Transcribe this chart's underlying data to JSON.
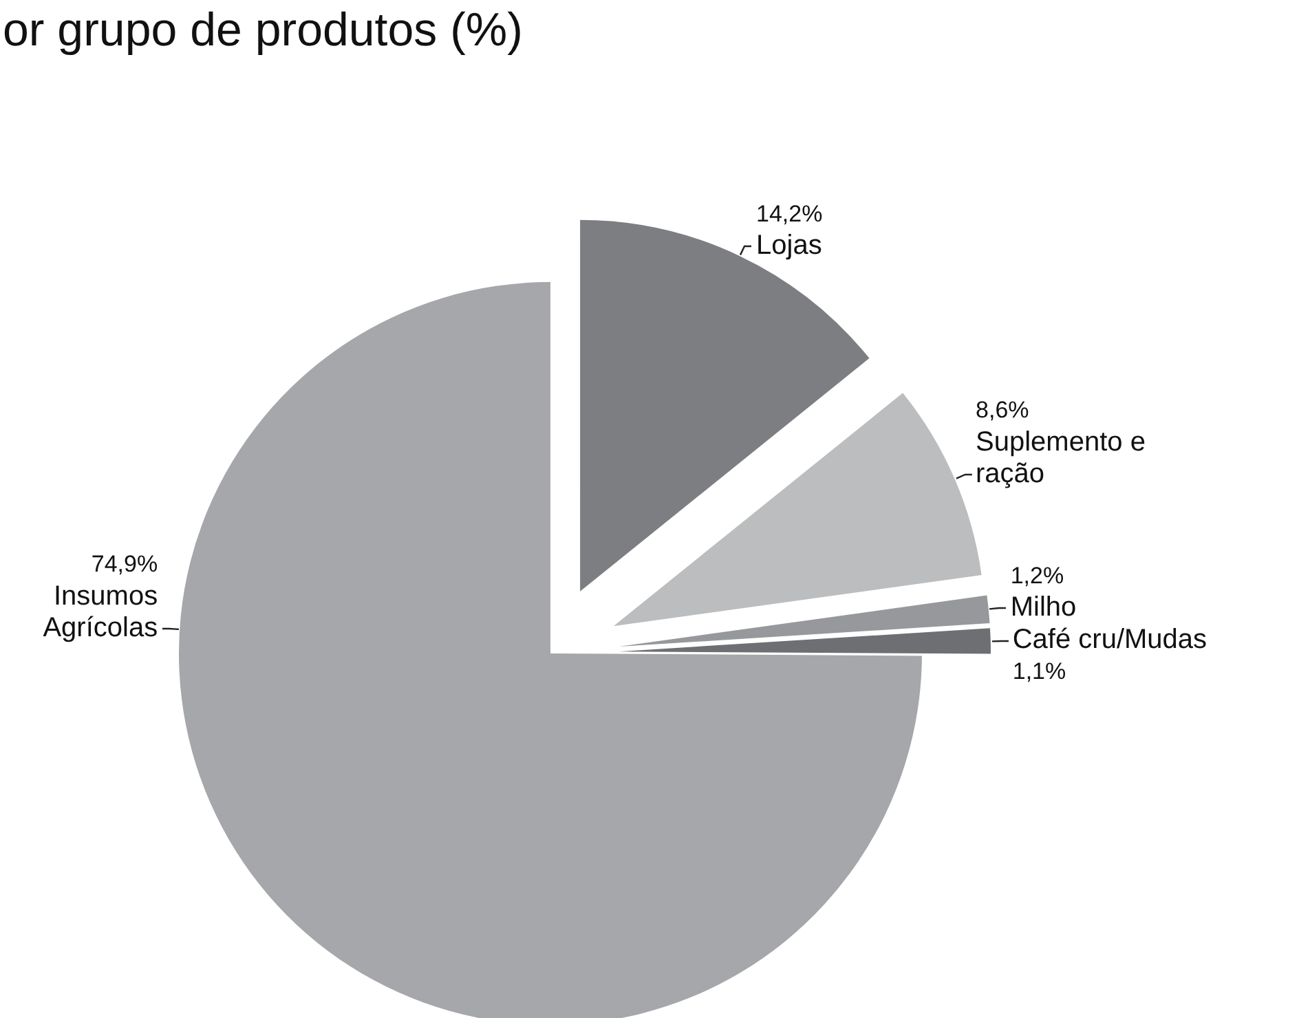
{
  "chart_data": {
    "type": "pie",
    "title": "or grupo de produtos (%)",
    "categories": [
      "Lojas",
      "Suplemento e ração",
      "Milho",
      "Café cru/Mudas",
      "Insumos Agrícolas"
    ],
    "values": [
      14.2,
      8.6,
      1.2,
      1.1,
      74.9
    ],
    "colors": [
      "#7d7e82",
      "#bcbdbf",
      "#97989b",
      "#6e6f72",
      "#a6a7aa"
    ],
    "value_labels": [
      "14,2%",
      "8,6%",
      "1,2%",
      "1,1%",
      "74,9%"
    ]
  }
}
